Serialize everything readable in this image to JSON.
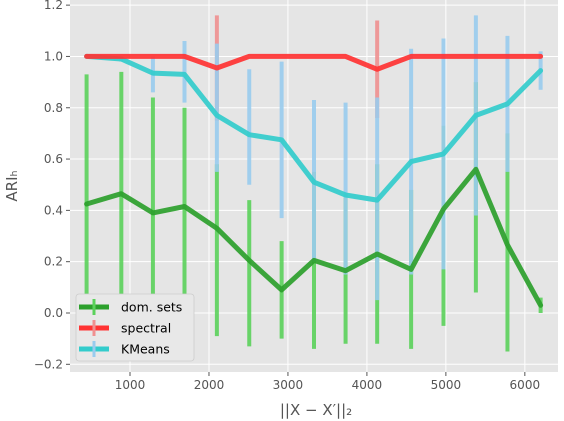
{
  "chart_data": {
    "type": "line",
    "title": "",
    "xlabel": "||X − X′||₂",
    "ylabel": "ARIₕ",
    "xlim": [
      240,
      6420
    ],
    "ylim": [
      -0.23,
      1.22
    ],
    "grid": true,
    "legend_position": "bottom-left",
    "xticks": [
      1000,
      2000,
      3000,
      4000,
      5000,
      6000
    ],
    "xtick_labels": [
      "1000",
      "2000",
      "3000",
      "4000",
      "5000",
      "6000"
    ],
    "yticks": [
      -0.2,
      0.0,
      0.2,
      0.4,
      0.6,
      0.8,
      1.0,
      1.2
    ],
    "ytick_labels": [
      "−0.2",
      "0.0",
      "0.2",
      "0.4",
      "0.6",
      "0.8",
      "1.0",
      "1.2"
    ],
    "x": [
      450,
      890,
      1290,
      1690,
      2100,
      2510,
      2920,
      3330,
      3730,
      4130,
      4560,
      4970,
      5380,
      5780,
      6200
    ],
    "series": [
      {
        "name": "dom. sets",
        "color": "#2ca02c",
        "err_color": "#5bd25b",
        "values": [
          0.425,
          0.465,
          0.39,
          0.415,
          0.33,
          0.205,
          0.09,
          0.205,
          0.165,
          0.23,
          0.17,
          0.405,
          0.56,
          0.265,
          0.03
        ],
        "err_low": [
          -0.08,
          -0.04,
          -0.06,
          -0.08,
          -0.09,
          -0.13,
          -0.1,
          -0.14,
          -0.12,
          -0.12,
          -0.14,
          -0.05,
          0.08,
          -0.15,
          0.0
        ],
        "err_high": [
          0.93,
          0.94,
          0.84,
          0.8,
          0.58,
          0.44,
          0.28,
          0.55,
          0.45,
          0.58,
          0.48,
          0.73,
          0.9,
          0.7,
          0.06
        ]
      },
      {
        "name": "spectral",
        "color": "#ff3333",
        "err_color": "#f09090",
        "values": [
          1.0,
          1.0,
          1.0,
          1.0,
          0.955,
          1.0,
          1.0,
          1.0,
          1.0,
          0.95,
          1.0,
          1.0,
          1.0,
          1.0,
          1.0
        ],
        "err_low": [
          1.0,
          1.0,
          1.0,
          1.0,
          0.75,
          1.0,
          1.0,
          1.0,
          1.0,
          0.76,
          1.0,
          1.0,
          1.0,
          1.0,
          1.0
        ],
        "err_high": [
          1.0,
          1.0,
          1.0,
          1.0,
          1.16,
          1.0,
          1.0,
          1.0,
          1.0,
          1.14,
          1.0,
          1.0,
          1.0,
          1.0,
          1.0
        ]
      },
      {
        "name": "KMeans",
        "color": "#33cccc",
        "err_color": "#99ccee",
        "values": [
          1.0,
          0.99,
          0.935,
          0.93,
          0.77,
          0.695,
          0.675,
          0.51,
          0.46,
          0.44,
          0.59,
          0.62,
          0.77,
          0.815,
          0.945
        ],
        "err_low": [
          1.0,
          0.98,
          0.86,
          0.82,
          0.55,
          0.5,
          0.37,
          0.2,
          0.15,
          0.05,
          0.15,
          0.17,
          0.38,
          0.55,
          0.87
        ],
        "err_high": [
          1.0,
          1.0,
          1.0,
          1.06,
          1.05,
          0.95,
          0.98,
          0.83,
          0.82,
          0.84,
          1.03,
          1.07,
          1.16,
          1.08,
          1.02
        ]
      }
    ]
  }
}
